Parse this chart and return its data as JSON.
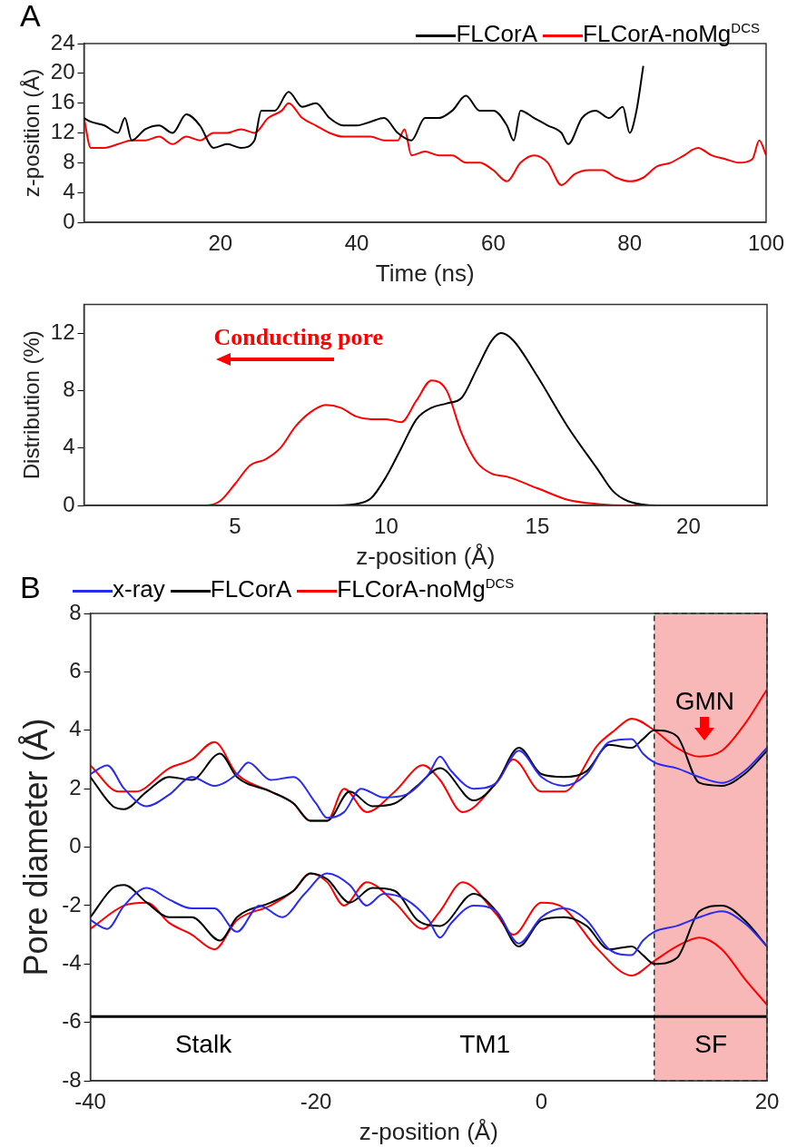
{
  "chart_data": [
    {
      "type": "line",
      "title": "A",
      "xlabel": "Time (ns)",
      "ylabel": "z-position (Å)",
      "xlim": [
        0,
        100
      ],
      "xticks": [
        20,
        40,
        60,
        80,
        100
      ],
      "ylim": [
        0,
        24
      ],
      "yticks": [
        0,
        4,
        8,
        12,
        16,
        20,
        24
      ],
      "legend": "top right",
      "grid": false,
      "series": [
        {
          "name": "FLCorA",
          "color": "#000000",
          "x": [
            0,
            1,
            3,
            5,
            6,
            7,
            9,
            11,
            13,
            15,
            17,
            19,
            21,
            23,
            25,
            26,
            28,
            30,
            32,
            34,
            36,
            38,
            40,
            42,
            44,
            46,
            48,
            50,
            52,
            54,
            56,
            58,
            60,
            62,
            63,
            64,
            66,
            68,
            70,
            71,
            73,
            75,
            77,
            79,
            80,
            81,
            82
          ],
          "values": [
            14,
            13.5,
            13,
            12,
            14,
            11,
            12.5,
            13,
            12,
            14.5,
            13,
            10,
            10.5,
            10,
            11,
            15,
            15,
            17.5,
            15.5,
            16,
            14,
            13,
            13,
            13.5,
            14,
            12,
            11,
            14,
            14,
            15,
            17,
            15,
            15,
            13,
            11,
            15,
            14,
            13,
            12,
            10.5,
            14,
            15,
            14,
            15.5,
            12,
            15,
            21
          ]
        },
        {
          "name": "FLCorA-noMg$^{DCS}$",
          "color": "#ff0000",
          "x": [
            0,
            1,
            3,
            5,
            7,
            9,
            11,
            13,
            15,
            17,
            19,
            21,
            23,
            25,
            27,
            29,
            30,
            32,
            34,
            36,
            38,
            40,
            42,
            44,
            46,
            47,
            48,
            50,
            52,
            54,
            56,
            58,
            60,
            62,
            64,
            66,
            68,
            70,
            72,
            74,
            76,
            78,
            80,
            82,
            84,
            86,
            88,
            90,
            92,
            94,
            96,
            98,
            99,
            100
          ],
          "values": [
            14,
            10,
            10,
            10.5,
            11,
            11,
            11.5,
            10.5,
            11.5,
            11,
            12,
            12,
            12.5,
            12,
            14,
            15,
            16,
            14,
            13,
            12,
            11.5,
            11.5,
            11.5,
            11,
            11,
            12.5,
            9,
            9.5,
            9,
            9,
            8,
            8,
            7,
            5.5,
            8,
            9,
            8,
            5,
            6.5,
            7,
            7,
            6,
            5.5,
            6,
            7.5,
            8,
            9,
            10,
            9,
            8.5,
            8,
            8.5,
            11,
            9
          ]
        }
      ]
    },
    {
      "type": "line",
      "xlabel": "z-position (Å)",
      "ylabel": "Distribution (%)",
      "xlim": [
        0,
        22.6
      ],
      "xticks": [
        5,
        10,
        15,
        20
      ],
      "ylim": [
        0,
        14
      ],
      "yticks": [
        0,
        4,
        8,
        12
      ],
      "grid": false,
      "annotations": [
        "Conducting pore"
      ],
      "series": [
        {
          "color": "#000000",
          "x": [
            0,
            8,
            9,
            9.5,
            10,
            10.5,
            11,
            11.5,
            12,
            12.5,
            13,
            13.5,
            13.8,
            14.2,
            15,
            16,
            17,
            17.5,
            18,
            19,
            22.6
          ],
          "values": [
            0,
            0,
            0.1,
            0.5,
            2,
            4,
            6,
            6.8,
            7.1,
            7.5,
            9.5,
            11.5,
            12,
            11.5,
            9,
            5.5,
            2.5,
            1,
            0.3,
            0,
            0
          ]
        },
        {
          "color": "#ff0000",
          "x": [
            0,
            4,
            4.5,
            5,
            5.5,
            6,
            6.5,
            7,
            7.5,
            8,
            8.5,
            9,
            9.5,
            10,
            10.5,
            11,
            11.5,
            12,
            12.5,
            13,
            13.5,
            14,
            15,
            16,
            17,
            18,
            22.6
          ],
          "values": [
            0,
            0,
            0.3,
            1.5,
            2.8,
            3.2,
            4,
            5.5,
            6.5,
            7,
            6.8,
            6.2,
            6,
            6,
            5.8,
            7.3,
            8.7,
            8,
            5,
            3,
            2.2,
            2,
            1.2,
            0.4,
            0.1,
            0,
            0
          ]
        }
      ]
    },
    {
      "type": "line",
      "title": "B",
      "xlabel": "z-position (Å)",
      "ylabel": "Pore diameter (Å)",
      "xlim": [
        -40,
        20
      ],
      "xticks": [
        -40,
        -20,
        0,
        20
      ],
      "ylim": [
        -8,
        8
      ],
      "yticks": [
        -8,
        -6,
        -4,
        -2,
        0,
        2,
        4,
        6,
        8
      ],
      "legend": "top",
      "grid": false,
      "bands": [
        {
          "axis": "x",
          "from": 10,
          "to": 20,
          "color": "#f9b8b8"
        }
      ],
      "ref_lines": [
        {
          "axis": "y",
          "value": -5.8,
          "color": "#000000"
        }
      ],
      "annotations": [
        "Stalk",
        "TM1",
        "SF",
        "GMN"
      ],
      "series": [
        {
          "name": "x-ray",
          "color": "#2b2bf0",
          "x": [
            -40,
            -38.5,
            -37,
            -35,
            -33,
            -31,
            -29,
            -27,
            -26,
            -24,
            -22,
            -20,
            -19,
            -17.5,
            -16,
            -14,
            -12,
            -10,
            -9,
            -8,
            -6,
            -4,
            -2,
            0,
            2,
            4,
            6,
            8,
            9,
            10,
            12,
            14,
            16,
            18,
            20
          ],
          "values": [
            2.5,
            2.8,
            2,
            1.4,
            1.8,
            2.4,
            2.1,
            2.5,
            2.9,
            2.3,
            2.4,
            1.5,
            1,
            1.2,
            2,
            1.7,
            1.8,
            2.5,
            3.1,
            2.6,
            2,
            2.2,
            3.3,
            2.4,
            2.1,
            2.5,
            3.6,
            3.7,
            3.2,
            2.9,
            2.7,
            2.4,
            2.2,
            2.6,
            3.4
          ]
        },
        {
          "name": "FLCorA",
          "color": "#000000",
          "x": [
            -40,
            -38,
            -37,
            -35,
            -33,
            -31,
            -28.5,
            -27,
            -24,
            -22,
            -20.5,
            -19,
            -17,
            -15,
            -13,
            -11,
            -9,
            -6,
            -4,
            -2,
            0,
            2,
            4,
            6,
            8,
            9,
            10,
            12,
            14,
            16,
            18,
            20
          ],
          "values": [
            2.4,
            1.4,
            1.3,
            1.9,
            2.4,
            2.3,
            3.2,
            2.4,
            1.9,
            1.5,
            0.9,
            0.9,
            1.9,
            1.4,
            1.5,
            2.1,
            2.7,
            1.6,
            2.2,
            3.4,
            2.5,
            2.4,
            2.6,
            3.5,
            3.4,
            3.7,
            4,
            3.8,
            2.2,
            2.1,
            2.5,
            3.3
          ]
        },
        {
          "name": "FLCorA-noMg$^{DCS}$",
          "color": "#ff0000",
          "x": [
            -40,
            -37.5,
            -36,
            -33,
            -31,
            -29,
            -27,
            -24,
            -22,
            -20.5,
            -19,
            -17.5,
            -15.5,
            -13,
            -10.5,
            -9,
            -7,
            -4,
            -2.5,
            0,
            2,
            5,
            6.5,
            8,
            10,
            12,
            14,
            16,
            18,
            20
          ],
          "values": [
            2.8,
            1.9,
            1.9,
            2.7,
            3,
            3.6,
            2.5,
            1.9,
            1.5,
            0.9,
            0.9,
            2,
            1.2,
            1.9,
            2.8,
            2.3,
            1.2,
            2.2,
            3,
            1.9,
            1.9,
            3.5,
            4,
            4.4,
            4,
            3.4,
            3.1,
            3.3,
            4.2,
            5.4
          ]
        },
        {
          "color": "#2b2bf0",
          "x": [
            -40,
            -38.5,
            -37,
            -35,
            -33,
            -31,
            -29,
            -27,
            -25,
            -23,
            -21,
            -19,
            -17,
            -15.5,
            -14,
            -12,
            -10,
            -9,
            -8,
            -6,
            -4,
            -2,
            0,
            2,
            4,
            6,
            8,
            9,
            10,
            12,
            14,
            16,
            18,
            20
          ],
          "values": [
            -2.5,
            -2.8,
            -2,
            -1.4,
            -1.8,
            -2.1,
            -2.1,
            -2.9,
            -2,
            -2.4,
            -1.6,
            -0.9,
            -1.3,
            -2,
            -1.6,
            -1.8,
            -2.5,
            -3.1,
            -2.6,
            -2,
            -2.2,
            -3.3,
            -2.4,
            -2.1,
            -2.5,
            -3.5,
            -3.7,
            -3.2,
            -2.9,
            -2.7,
            -2.4,
            -2.2,
            -2.6,
            -3.4
          ]
        },
        {
          "color": "#000000",
          "x": [
            -40,
            -38,
            -37,
            -35,
            -33,
            -31,
            -28.5,
            -27,
            -24,
            -22,
            -20.5,
            -19,
            -17,
            -15,
            -13,
            -11,
            -9,
            -6,
            -4,
            -2,
            0,
            2,
            4,
            6,
            8,
            9,
            10,
            12,
            14,
            16,
            18,
            20
          ],
          "values": [
            -2.4,
            -1.4,
            -1.3,
            -1.9,
            -2.4,
            -2.4,
            -3.2,
            -2.4,
            -1.9,
            -1.5,
            -0.9,
            -1.1,
            -1.9,
            -1.4,
            -1.5,
            -2.5,
            -2.7,
            -1.6,
            -2.2,
            -3.4,
            -2.5,
            -2.4,
            -2.7,
            -3.5,
            -3.4,
            -3.7,
            -4,
            -3.8,
            -2.2,
            -2,
            -2.5,
            -3.4
          ]
        },
        {
          "color": "#ff0000",
          "x": [
            -40,
            -37,
            -35,
            -33,
            -31,
            -29,
            -27,
            -24,
            -22,
            -20.5,
            -19,
            -17.5,
            -15.5,
            -13,
            -10.5,
            -9,
            -7,
            -4,
            -2.5,
            0,
            2,
            5,
            8,
            10,
            12,
            14,
            16,
            18,
            20
          ],
          "values": [
            -2.8,
            -2,
            -1.9,
            -2.6,
            -3,
            -3.5,
            -2.5,
            -2,
            -1.5,
            -0.9,
            -1.2,
            -2,
            -1.2,
            -1.9,
            -2.8,
            -2.2,
            -1.2,
            -2.3,
            -3,
            -1.9,
            -2.1,
            -3.5,
            -4.4,
            -3.9,
            -3.4,
            -3.1,
            -3.5,
            -4.5,
            -5.4
          ]
        }
      ]
    }
  ]
}
